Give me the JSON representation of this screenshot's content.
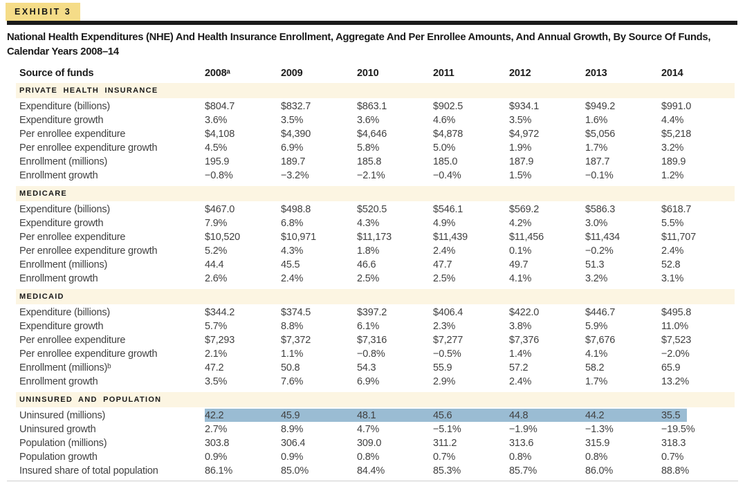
{
  "exhibit": {
    "badge": "EXHIBIT 3"
  },
  "title_lines": [
    "National Health Expenditures (NHE) And Health Insurance Enrollment, Aggregate And Per Enrollee Amounts, And Annual Growth, By Source Of Funds,",
    "Calendar Years 2008–14"
  ],
  "colors": {
    "badge_bg": "#F5DC88",
    "divider_bar": "#1B1B1B",
    "section_band_bg": "#FCF5E2",
    "highlight_bg": "#9ABCD3"
  },
  "table": {
    "row_header": "Source of funds",
    "years": [
      "2008ᵃ",
      "2009",
      "2010",
      "2011",
      "2012",
      "2013",
      "2014"
    ],
    "sections": [
      {
        "title": "PRIVATE HEALTH INSURANCE",
        "rows": [
          {
            "label": "Expenditure (billions)",
            "values": [
              "$804.7",
              "$832.7",
              "$863.1",
              "$902.5",
              "$934.1",
              "$949.2",
              "$991.0"
            ]
          },
          {
            "label": "Expenditure growth",
            "values": [
              "3.6%",
              "3.5%",
              "3.6%",
              "4.6%",
              "3.5%",
              "1.6%",
              "4.4%"
            ]
          },
          {
            "label": "Per enrollee expenditure",
            "values": [
              "$4,108",
              "$4,390",
              "$4,646",
              "$4,878",
              "$4,972",
              "$5,056",
              "$5,218"
            ]
          },
          {
            "label": "Per enrollee expenditure growth",
            "values": [
              "4.5%",
              "6.9%",
              "5.8%",
              "5.0%",
              "1.9%",
              "1.7%",
              "3.2%"
            ]
          },
          {
            "label": "Enrollment (millions)",
            "values": [
              "195.9",
              "189.7",
              "185.8",
              "185.0",
              "187.9",
              "187.7",
              "189.9"
            ]
          },
          {
            "label": "Enrollment growth",
            "values": [
              "−0.8%",
              "−3.2%",
              "−2.1%",
              "−0.4%",
              "1.5%",
              "−0.1%",
              "1.2%"
            ]
          }
        ]
      },
      {
        "title": "MEDICARE",
        "rows": [
          {
            "label": "Expenditure (billions)",
            "values": [
              "$467.0",
              "$498.8",
              "$520.5",
              "$546.1",
              "$569.2",
              "$586.3",
              "$618.7"
            ]
          },
          {
            "label": "Expenditure growth",
            "values": [
              "7.9%",
              "6.8%",
              "4.3%",
              "4.9%",
              "4.2%",
              "3.0%",
              "5.5%"
            ]
          },
          {
            "label": "Per enrollee expenditure",
            "values": [
              "$10,520",
              "$10,971",
              "$11,173",
              "$11,439",
              "$11,456",
              "$11,434",
              "$11,707"
            ]
          },
          {
            "label": "Per enrollee expenditure growth",
            "values": [
              "5.2%",
              "4.3%",
              "1.8%",
              "2.4%",
              "0.1%",
              "−0.2%",
              "2.4%"
            ]
          },
          {
            "label": "Enrollment (millions)",
            "values": [
              "44.4",
              "45.5",
              "46.6",
              "47.7",
              "49.7",
              "51.3",
              "52.8"
            ]
          },
          {
            "label": "Enrollment growth",
            "values": [
              "2.6%",
              "2.4%",
              "2.5%",
              "2.5%",
              "4.1%",
              "3.2%",
              "3.1%"
            ]
          }
        ]
      },
      {
        "title": "MEDICAID",
        "rows": [
          {
            "label": "Expenditure (billions)",
            "values": [
              "$344.2",
              "$374.5",
              "$397.2",
              "$406.4",
              "$422.0",
              "$446.7",
              "$495.8"
            ]
          },
          {
            "label": "Expenditure growth",
            "values": [
              "5.7%",
              "8.8%",
              "6.1%",
              "2.3%",
              "3.8%",
              "5.9%",
              "11.0%"
            ]
          },
          {
            "label": "Per enrollee expenditure",
            "values": [
              "$7,293",
              "$7,372",
              "$7,316",
              "$7,277",
              "$7,376",
              "$7,676",
              "$7,523"
            ]
          },
          {
            "label": "Per enrollee expenditure growth",
            "values": [
              "2.1%",
              "1.1%",
              "−0.8%",
              "−0.5%",
              "1.4%",
              "4.1%",
              "−2.0%"
            ]
          },
          {
            "label": "Enrollment (millions)ᵇ",
            "values": [
              "47.2",
              "50.8",
              "54.3",
              "55.9",
              "57.2",
              "58.2",
              "65.9"
            ]
          },
          {
            "label": "Enrollment growth",
            "values": [
              "3.5%",
              "7.6%",
              "6.9%",
              "2.9%",
              "2.4%",
              "1.7%",
              "13.2%"
            ]
          }
        ]
      },
      {
        "title": "UNINSURED AND POPULATION",
        "rows": [
          {
            "label": "Uninsured (millions)",
            "highlight": true,
            "values": [
              "42.2",
              "45.9",
              "48.1",
              "45.6",
              "44.8",
              "44.2",
              "35.5"
            ]
          },
          {
            "label": "Uninsured growth",
            "values": [
              "2.7%",
              "8.9%",
              "4.7%",
              "−5.1%",
              "−1.9%",
              "−1.3%",
              "−19.5%"
            ]
          },
          {
            "label": "Population (millions)",
            "values": [
              "303.8",
              "306.4",
              "309.0",
              "311.2",
              "313.6",
              "315.9",
              "318.3"
            ]
          },
          {
            "label": "Population growth",
            "values": [
              "0.9%",
              "0.9%",
              "0.8%",
              "0.7%",
              "0.8%",
              "0.8%",
              "0.7%"
            ]
          },
          {
            "label": "Insured share of total population",
            "values": [
              "86.1%",
              "85.0%",
              "84.4%",
              "85.3%",
              "85.7%",
              "86.0%",
              "88.8%"
            ]
          }
        ]
      }
    ]
  }
}
